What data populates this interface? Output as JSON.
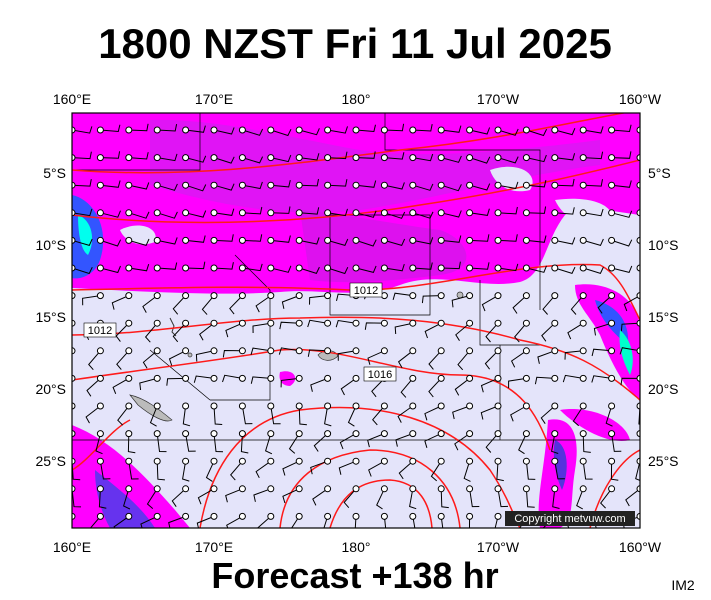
{
  "header": {
    "title": "1800 NZST Fri 11 Jul 2025"
  },
  "map": {
    "longitude_labels": [
      "160°E",
      "170°E",
      "180°",
      "170°W",
      "160°W"
    ],
    "latitude_labels": [
      "5°S",
      "10°S",
      "15°S",
      "20°S",
      "25°S"
    ],
    "isobar_labels": [
      "1012",
      "1016",
      "1012"
    ],
    "credit": "Copyright metvuw.com"
  },
  "footer": {
    "forecast": "Forecast +138 hr",
    "code": "IM2"
  }
}
